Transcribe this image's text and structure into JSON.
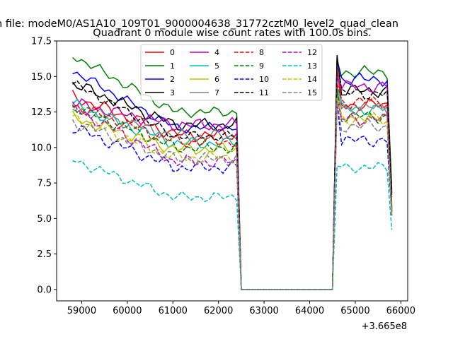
{
  "chart_data": {
    "type": "line",
    "suptitle": "n file: modeM0/AS1A10_109T01_9000004638_31772cztM0_level2_quad_clean",
    "title": "Quadrant 0 module wise count rates with 100.0s bins.",
    "xlabel": "",
    "ylabel": "",
    "offset_label": "+3.665e8",
    "xlim": [
      58450,
      66150
    ],
    "ylim": [
      -0.8,
      17.5
    ],
    "x_ticks": [
      59000,
      60000,
      61000,
      62000,
      63000,
      64000,
      65000,
      66000
    ],
    "x_tick_labels": [
      "59000",
      "60000",
      "61000",
      "62000",
      "63000",
      "64000",
      "65000",
      "66000"
    ],
    "y_ticks": [
      0,
      2.5,
      5,
      7.5,
      10,
      12.5,
      15,
      17.5
    ],
    "y_tick_labels": [
      "0.0",
      "2.5",
      "5.0",
      "7.5",
      "10.0",
      "12.5",
      "15.0",
      "17.5"
    ],
    "legend_position": "upper-center",
    "x_start": 58800,
    "x_step": 100,
    "gap_start": 62500,
    "gap_end": 64500,
    "post_start": 64600,
    "x_end": 65800,
    "series": [
      {
        "name": "0",
        "color": "#ff0000",
        "dash": "solid",
        "pre_level": 10.9,
        "pre_start": 13.6,
        "pre_amp": 0.5,
        "post_start": 15.6,
        "post_level": 13.0,
        "post_amp": 0.5,
        "end": 6.0
      },
      {
        "name": "1",
        "color": "#008000",
        "dash": "solid",
        "pre_level": 12.5,
        "pre_start": 16.5,
        "pre_amp": 0.4,
        "post_start": 15.0,
        "post_level": 15.3,
        "post_amp": 0.5,
        "end": 7.0
      },
      {
        "name": "2",
        "color": "#0000ff",
        "dash": "solid",
        "pre_level": 11.4,
        "pre_start": 15.4,
        "pre_amp": 0.4,
        "post_start": 16.2,
        "post_level": 14.8,
        "post_amp": 0.5,
        "end": 5.7
      },
      {
        "name": "3",
        "color": "#000000",
        "dash": "solid",
        "pre_level": 11.6,
        "pre_start": 14.5,
        "pre_amp": 0.5,
        "post_start": 16.5,
        "post_level": 14.0,
        "post_amp": 0.5,
        "end": 6.8
      },
      {
        "name": "4",
        "color": "#bf00bf",
        "dash": "solid",
        "pre_level": 11.6,
        "pre_start": 13.1,
        "pre_amp": 0.5,
        "post_start": 15.0,
        "post_level": 14.3,
        "post_amp": 0.5,
        "end": 5.5
      },
      {
        "name": "5",
        "color": "#00bfbf",
        "dash": "solid",
        "pre_level": 10.3,
        "pre_start": 13.0,
        "pre_amp": 0.5,
        "post_start": 14.3,
        "post_level": 12.7,
        "post_amp": 0.5,
        "end": 5.4
      },
      {
        "name": "6",
        "color": "#bfbf00",
        "dash": "solid",
        "pre_level": 9.9,
        "pre_start": 12.1,
        "pre_amp": 0.5,
        "post_start": 13.7,
        "post_level": 12.0,
        "post_amp": 0.5,
        "end": 5.3
      },
      {
        "name": "7",
        "color": "#808080",
        "dash": "solid",
        "pre_level": 10.8,
        "pre_start": 12.8,
        "pre_amp": 0.5,
        "post_start": 14.0,
        "post_level": 12.8,
        "post_amp": 0.5,
        "end": 5.5
      },
      {
        "name": "8",
        "color": "#ff0000",
        "dash": "dashed",
        "pre_level": 10.4,
        "pre_start": 13.0,
        "pre_amp": 0.5,
        "post_start": 14.5,
        "post_level": 13.2,
        "post_amp": 0.5,
        "end": 5.8
      },
      {
        "name": "9",
        "color": "#008000",
        "dash": "dashed",
        "pre_level": 10.0,
        "pre_start": 12.9,
        "pre_amp": 0.5,
        "post_start": 14.1,
        "post_level": 12.2,
        "post_amp": 0.5,
        "end": 5.5
      },
      {
        "name": "10",
        "color": "#0000ff",
        "dash": "dashed",
        "pre_level": 8.6,
        "pre_start": 11.4,
        "pre_amp": 0.5,
        "post_start": 13.2,
        "post_level": 10.5,
        "post_amp": 0.5,
        "end": 5.2
      },
      {
        "name": "11",
        "color": "#000000",
        "dash": "dashed",
        "pre_level": 10.8,
        "pre_start": 14.5,
        "pre_amp": 0.4,
        "post_start": 16.3,
        "post_level": 13.8,
        "post_amp": 0.5,
        "end": 6.5
      },
      {
        "name": "12",
        "color": "#bf00bf",
        "dash": "dashed",
        "pre_level": 9.0,
        "pre_start": 12.8,
        "pre_amp": 0.5,
        "post_start": 13.5,
        "post_level": 12.0,
        "post_amp": 0.5,
        "end": 5.2
      },
      {
        "name": "13",
        "color": "#00bfbf",
        "dash": "dashed",
        "pre_level": 6.5,
        "pre_start": 9.1,
        "pre_amp": 0.4,
        "post_start": 8.7,
        "post_level": 8.6,
        "post_amp": 0.4,
        "end": 4.2
      },
      {
        "name": "14",
        "color": "#bfbf00",
        "dash": "dashed",
        "pre_level": 9.3,
        "pre_start": 12.2,
        "pre_amp": 0.5,
        "post_start": 13.5,
        "post_level": 12.0,
        "post_amp": 0.5,
        "end": 5.3
      },
      {
        "name": "15",
        "color": "#808080",
        "dash": "dashed",
        "pre_level": 9.2,
        "pre_start": 11.8,
        "pre_amp": 0.5,
        "post_start": 13.3,
        "post_level": 11.5,
        "post_amp": 0.5,
        "end": 5.2
      }
    ]
  }
}
